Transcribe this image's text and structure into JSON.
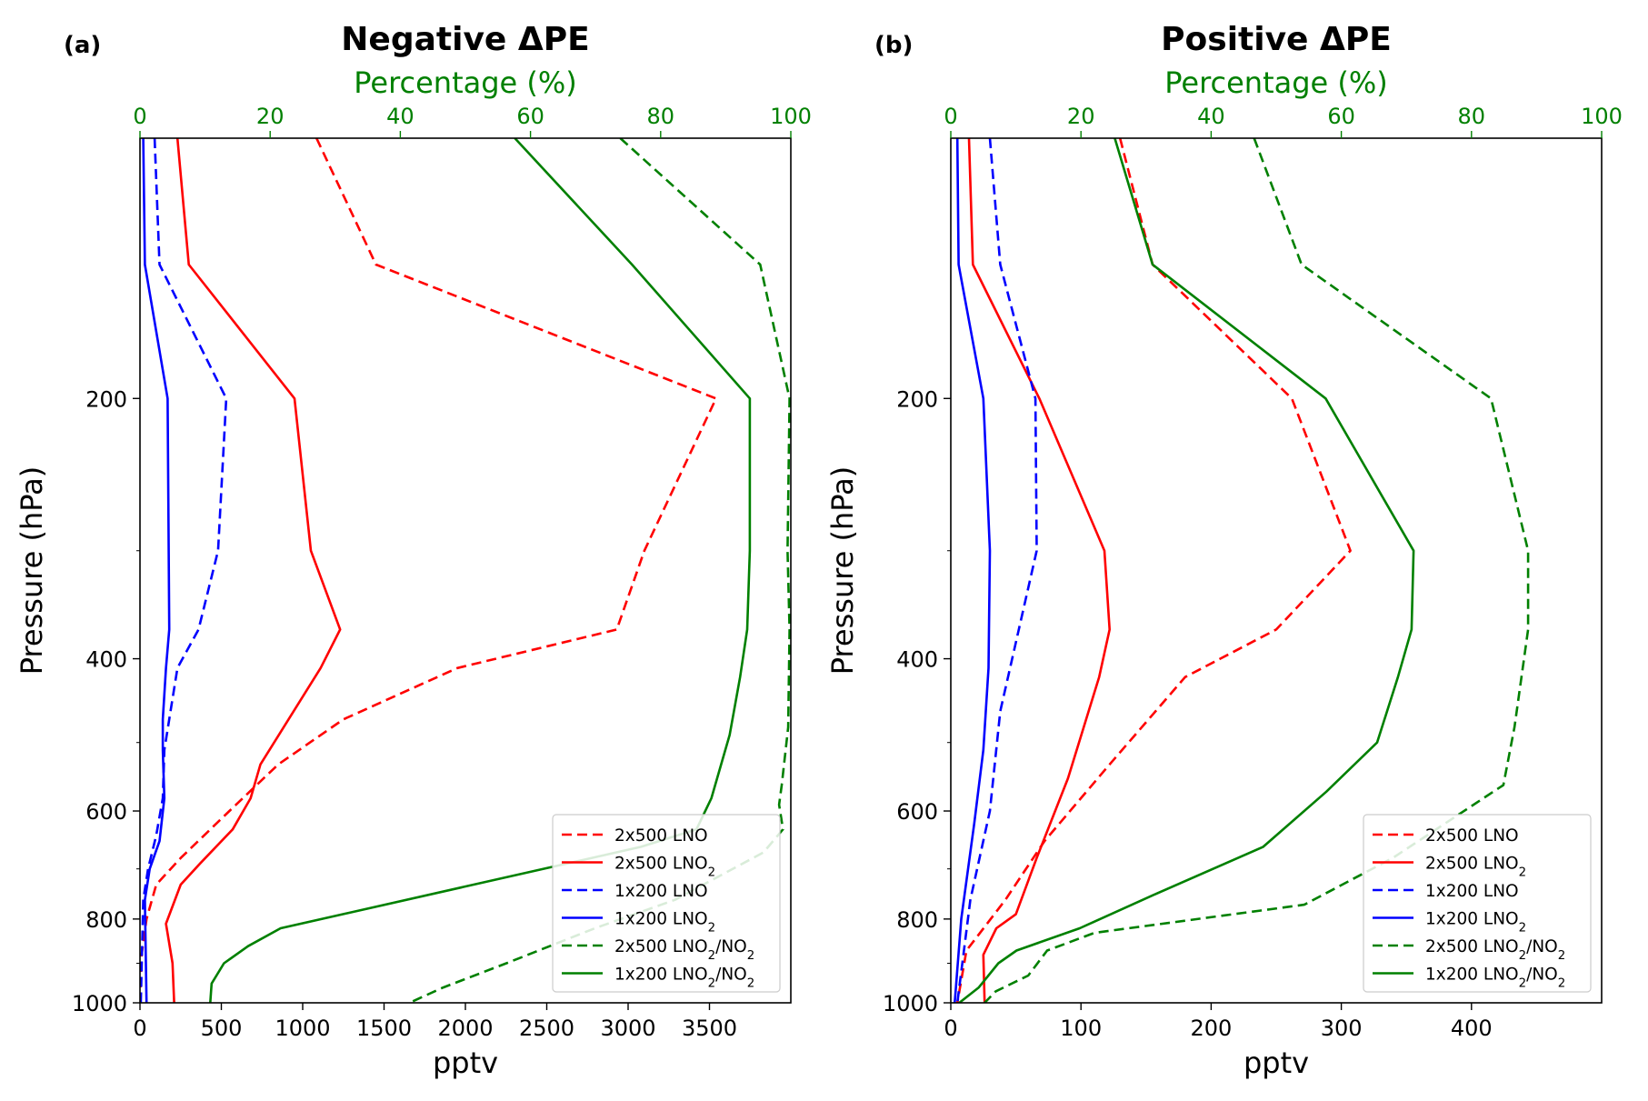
{
  "chart_data": [
    {
      "panel_label": "(a)",
      "title": "Negative ΔPE",
      "type": "line",
      "xlabel": "pptv",
      "xlim": [
        0,
        4000
      ],
      "xticks": [
        0,
        500,
        1000,
        1500,
        2000,
        2500,
        3000,
        3500
      ],
      "x2label": "Percentage (%)",
      "x2lim": [
        0,
        100
      ],
      "x2ticks": [
        0,
        20,
        40,
        60,
        80,
        100
      ],
      "ylabel": "Pressure (hPa)",
      "ylim": [
        1000,
        100
      ],
      "yscale": "log",
      "yticks": [
        200,
        400,
        600,
        800,
        1000
      ],
      "legend_position": "lower right",
      "series": [
        {
          "name": "2x500 LNO",
          "axis": "pptv",
          "color": "#ff0000",
          "style": "dashed",
          "points": [
            [
              1085,
              100
            ],
            [
              1450,
              140
            ],
            [
              3540,
              200
            ],
            [
              3100,
              300
            ],
            [
              2930,
              370
            ],
            [
              1950,
              410
            ],
            [
              1250,
              470
            ],
            [
              850,
              530
            ],
            [
              550,
              600
            ],
            [
              250,
              680
            ],
            [
              100,
              730
            ],
            [
              40,
              800
            ],
            [
              10,
              880
            ],
            [
              0,
              1000
            ]
          ]
        },
        {
          "name": "2x500 LNO₂",
          "axis": "pptv",
          "color": "#ff0000",
          "style": "solid",
          "points": [
            [
              230,
              100
            ],
            [
              300,
              140
            ],
            [
              950,
              200
            ],
            [
              1050,
              300
            ],
            [
              1230,
              370
            ],
            [
              1110,
              410
            ],
            [
              740,
              530
            ],
            [
              680,
              580
            ],
            [
              570,
              630
            ],
            [
              370,
              690
            ],
            [
              250,
              730
            ],
            [
              160,
              810
            ],
            [
              200,
              900
            ],
            [
              210,
              1000
            ]
          ]
        },
        {
          "name": "1x200 LNO",
          "axis": "pptv",
          "color": "#0000ff",
          "style": "dashed",
          "points": [
            [
              90,
              100
            ],
            [
              120,
              140
            ],
            [
              530,
              200
            ],
            [
              480,
              300
            ],
            [
              360,
              370
            ],
            [
              230,
              410
            ],
            [
              150,
              510
            ],
            [
              140,
              580
            ],
            [
              100,
              640
            ],
            [
              50,
              700
            ],
            [
              20,
              760
            ],
            [
              5,
              1000
            ]
          ]
        },
        {
          "name": "1x200 LNO₂",
          "axis": "pptv",
          "color": "#0000ff",
          "style": "solid",
          "points": [
            [
              20,
              100
            ],
            [
              30,
              140
            ],
            [
              170,
              200
            ],
            [
              180,
              370
            ],
            [
              160,
              410
            ],
            [
              140,
              470
            ],
            [
              140,
              510
            ],
            [
              150,
              580
            ],
            [
              120,
              650
            ],
            [
              60,
              700
            ],
            [
              30,
              760
            ],
            [
              40,
              1000
            ]
          ]
        },
        {
          "name": "2x500 LNO₂/NO₂",
          "axis": "percent",
          "color": "#008000",
          "style": "dashed",
          "points": [
            [
              73.8,
              100
            ],
            [
              95.3,
              140
            ],
            [
              99.8,
              200
            ],
            [
              99.5,
              300
            ],
            [
              99.8,
              370
            ],
            [
              99.6,
              480
            ],
            [
              98.6,
              560
            ],
            [
              98.2,
              590
            ],
            [
              98.8,
              630
            ],
            [
              95.8,
              670
            ],
            [
              82.2,
              760
            ],
            [
              69.9,
              820
            ],
            [
              56.3,
              900
            ],
            [
              46.6,
              960
            ],
            [
              41.4,
              1000
            ]
          ]
        },
        {
          "name": "1x200 LNO₂/NO₂",
          "axis": "percent",
          "color": "#008000",
          "style": "solid",
          "points": [
            [
              57.6,
              100
            ],
            [
              75.6,
              140
            ],
            [
              93.7,
              200
            ],
            [
              93.7,
              300
            ],
            [
              93.3,
              370
            ],
            [
              92.2,
              420
            ],
            [
              90.6,
              490
            ],
            [
              87.8,
              580
            ],
            [
              85.5,
              630
            ],
            [
              77.0,
              660
            ],
            [
              21.6,
              820
            ],
            [
              16.6,
              860
            ],
            [
              12.9,
              900
            ],
            [
              11.0,
              950
            ],
            [
              10.8,
              1000
            ]
          ]
        }
      ]
    },
    {
      "panel_label": "(b)",
      "title": "Positive ΔPE",
      "type": "line",
      "xlabel": "pptv",
      "xlim": [
        0,
        500
      ],
      "xticks": [
        0,
        100,
        200,
        300,
        400
      ],
      "x2label": "Percentage (%)",
      "x2lim": [
        0,
        100
      ],
      "x2ticks": [
        0,
        20,
        40,
        60,
        80,
        100
      ],
      "ylabel": "Pressure (hPa)",
      "ylim": [
        1000,
        100
      ],
      "yscale": "log",
      "yticks": [
        200,
        400,
        600,
        800,
        1000
      ],
      "legend_position": "lower right",
      "series": [
        {
          "name": "2x500 LNO",
          "axis": "pptv",
          "color": "#ff0000",
          "style": "dashed",
          "points": [
            [
              130,
              100
            ],
            [
              155,
              140
            ],
            [
              262,
              200
            ],
            [
              307,
              300
            ],
            [
              250,
              370
            ],
            [
              180,
              420
            ],
            [
              122,
              530
            ],
            [
              72,
              650
            ],
            [
              42,
              760
            ],
            [
              12,
              870
            ],
            [
              5,
              1000
            ]
          ]
        },
        {
          "name": "2x500 LNO₂",
          "axis": "pptv",
          "color": "#ff0000",
          "style": "solid",
          "points": [
            [
              14,
              100
            ],
            [
              17,
              140
            ],
            [
              68,
              200
            ],
            [
              118,
              300
            ],
            [
              122,
              370
            ],
            [
              114,
              420
            ],
            [
              90,
              550
            ],
            [
              66,
              680
            ],
            [
              50,
              790
            ],
            [
              35,
              820
            ],
            [
              25,
              880
            ],
            [
              26,
              1000
            ]
          ]
        },
        {
          "name": "1x200 LNO",
          "axis": "pptv",
          "color": "#0000ff",
          "style": "dashed",
          "points": [
            [
              30,
              100
            ],
            [
              38,
              140
            ],
            [
              65,
              200
            ],
            [
              66,
              300
            ],
            [
              38,
              460
            ],
            [
              30,
              600
            ],
            [
              15,
              760
            ],
            [
              5,
              1000
            ]
          ]
        },
        {
          "name": "1x200 LNO₂",
          "axis": "pptv",
          "color": "#0000ff",
          "style": "solid",
          "points": [
            [
              5,
              100
            ],
            [
              6,
              140
            ],
            [
              25,
              200
            ],
            [
              30,
              300
            ],
            [
              29,
              410
            ],
            [
              25,
              510
            ],
            [
              18,
              620
            ],
            [
              8,
              800
            ],
            [
              3,
              1000
            ]
          ]
        },
        {
          "name": "2x500 LNO₂/NO₂",
          "axis": "percent",
          "color": "#008000",
          "style": "dashed",
          "points": [
            [
              46.6,
              100
            ],
            [
              53.9,
              140
            ],
            [
              83.0,
              200
            ],
            [
              88.7,
              300
            ],
            [
              88.7,
              370
            ],
            [
              86.6,
              480
            ],
            [
              84.9,
              560
            ],
            [
              67.9,
              680
            ],
            [
              54.3,
              770
            ],
            [
              22.1,
              830
            ],
            [
              14.8,
              870
            ],
            [
              11.9,
              930
            ],
            [
              6.9,
              970
            ],
            [
              5.2,
              1000
            ]
          ]
        },
        {
          "name": "1x200 LNO₂/NO₂",
          "axis": "percent",
          "color": "#008000",
          "style": "solid",
          "points": [
            [
              25.2,
              100
            ],
            [
              31.0,
              140
            ],
            [
              57.6,
              200
            ],
            [
              71.1,
              300
            ],
            [
              70.8,
              370
            ],
            [
              68.7,
              420
            ],
            [
              65.5,
              500
            ],
            [
              57.7,
              570
            ],
            [
              48.0,
              660
            ],
            [
              31.2,
              750
            ],
            [
              19.8,
              820
            ],
            [
              10.1,
              870
            ],
            [
              7.3,
              900
            ],
            [
              4.3,
              960
            ],
            [
              1.3,
              1000
            ]
          ]
        }
      ]
    }
  ]
}
